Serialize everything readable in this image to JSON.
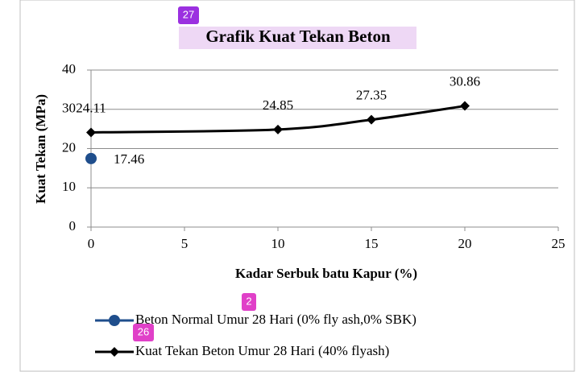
{
  "chart_data": {
    "type": "line",
    "title": "Grafik Kuat Tekan Beton",
    "xlabel": "Kadar Serbuk batu Kapur (%)",
    "ylabel": "Kuat Tekan (MPa)",
    "xlim": [
      0,
      25
    ],
    "xticks": [
      0,
      5,
      10,
      15,
      20,
      25
    ],
    "ylim": [
      0,
      40
    ],
    "yticks": [
      0,
      10,
      20,
      30,
      40
    ],
    "grid": true,
    "legend": "bottom",
    "series": [
      {
        "name": "Beton Normal Umur 28 Hari (0% fly ash,0% SBK)",
        "color": "#1f4e8c",
        "marker": "circle",
        "x": [
          0
        ],
        "values": [
          17.46
        ]
      },
      {
        "name": "Kuat Tekan Beton Umur 28 Hari (40% flyash)",
        "color": "#000000",
        "marker": "diamond",
        "x": [
          0,
          10,
          15,
          20
        ],
        "values": [
          24.11,
          24.85,
          27.35,
          30.86
        ]
      }
    ]
  },
  "annotations": [
    "27",
    "2",
    "26"
  ]
}
